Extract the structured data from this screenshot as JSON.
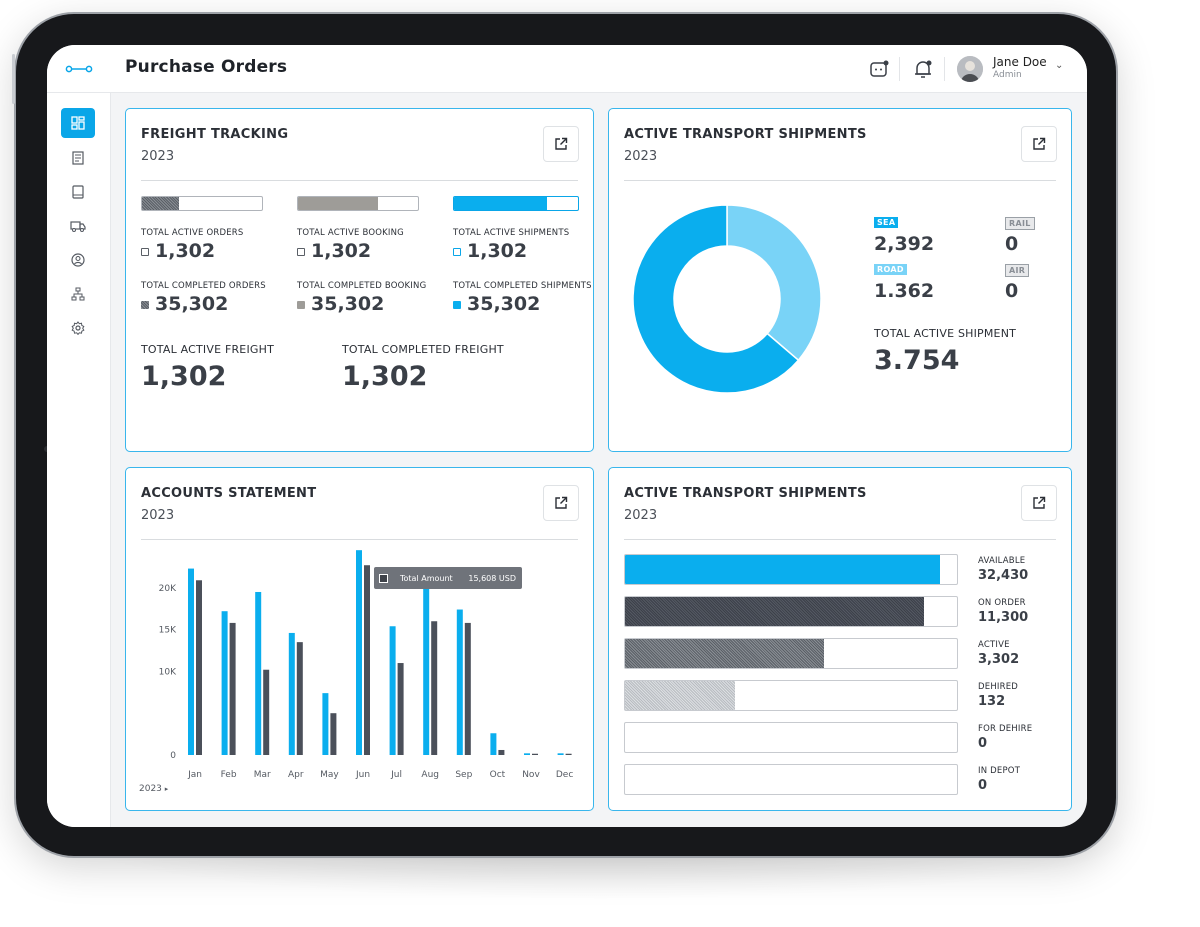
{
  "header": {
    "title": "Purchase Orders"
  },
  "user": {
    "name": "Jane Doe",
    "role": "Admin"
  },
  "colors": {
    "accent": "#0aa6e8",
    "light_blue": "#79d3f7",
    "dark_bar": "#4b505a"
  },
  "sidebar": {
    "items": [
      {
        "icon": "dashboard-icon",
        "active": true
      },
      {
        "icon": "document-list-icon",
        "active": false
      },
      {
        "icon": "book-icon",
        "active": false
      },
      {
        "icon": "truck-icon",
        "active": false
      },
      {
        "icon": "user-circle-icon",
        "active": false
      },
      {
        "icon": "hierarchy-icon",
        "active": false
      },
      {
        "icon": "settings-icon",
        "active": false
      }
    ]
  },
  "freight": {
    "title": "FREIGHT TRACKING",
    "year": "2023",
    "orders": {
      "progress": 0.31,
      "active_label": "TOTAL ACTIVE ORDERS",
      "active_value": "1,302",
      "completed_label": "TOTAL COMPLETED ORDERS",
      "completed_value": "35,302"
    },
    "booking": {
      "progress": 0.67,
      "active_label": "TOTAL ACTIVE BOOKING",
      "active_value": "1,302",
      "completed_label": "TOTAL COMPLETED BOOKING",
      "completed_value": "35,302"
    },
    "shipments": {
      "progress": 0.75,
      "active_label": "TOTAL ACTIVE SHIPMENTS",
      "active_value": "1,302",
      "completed_label": "TOTAL COMPLETED SHIPMENTS",
      "completed_value": "35,302"
    },
    "total_active_label": "TOTAL ACTIVE FREIGHT",
    "total_active_value": "1,302",
    "total_completed_label": "TOTAL COMPLETED FREIGHT",
    "total_completed_value": "1,302"
  },
  "transport": {
    "title": "ACTIVE TRANSPORT SHIPMENTS",
    "year": "2023",
    "modes": [
      {
        "tag": "SEA",
        "value": "2,392"
      },
      {
        "tag": "RAIL",
        "value": "0"
      },
      {
        "tag": "ROAD",
        "value": "1.362"
      },
      {
        "tag": "AIR",
        "value": "0"
      }
    ],
    "total_label": "TOTAL ACTIVE SHIPMENT",
    "total_value": "3.754"
  },
  "accounts": {
    "title": "ACCOUNTS STATEMENT",
    "year": "2023",
    "year_selector": "2023",
    "tooltip": {
      "label": "Total Amount",
      "value": "15,608 USD"
    }
  },
  "inventory": {
    "title": "ACTIVE TRANSPORT SHIPMENTS",
    "year": "2023",
    "rows": [
      {
        "label": "AVAILABLE",
        "value": "32,430",
        "fraction": 0.95
      },
      {
        "label": "ON ORDER",
        "value": "11,300",
        "fraction": 0.9
      },
      {
        "label": "ACTIVE",
        "value": "3,302",
        "fraction": 0.6
      },
      {
        "label": "DEHIRED",
        "value": "132",
        "fraction": 0.33
      },
      {
        "label": "FOR DEHIRE",
        "value": "0",
        "fraction": 0
      },
      {
        "label": "IN DEPOT",
        "value": "0",
        "fraction": 0
      }
    ]
  },
  "chart_data": [
    {
      "type": "pie",
      "categories": [
        "Sea",
        "Road"
      ],
      "values": [
        2392,
        1362
      ],
      "colors": [
        "#0aaeee",
        "#79d3f7"
      ],
      "donut": true
    },
    {
      "type": "bar",
      "categories": [
        "Jan",
        "Feb",
        "Mar",
        "Apr",
        "May",
        "Jun",
        "Jul",
        "Aug",
        "Sep",
        "Oct",
        "Nov",
        "Dec"
      ],
      "series": [
        {
          "values": [
            22300,
            17200,
            19500,
            14600,
            7400,
            24500,
            15400,
            20600,
            17400,
            2600,
            200,
            200
          ],
          "color": "#0aaeee"
        },
        {
          "values": [
            20900,
            15800,
            10200,
            13500,
            5000,
            22700,
            11000,
            16000,
            15800,
            600,
            150,
            150
          ],
          "color": "#4b505a"
        }
      ],
      "yticks": [
        "0",
        "10K",
        "15K",
        "20K"
      ],
      "ytick_values": [
        0,
        10000,
        15000,
        20000
      ],
      "ylim": [
        0,
        25000
      ],
      "grid": false
    }
  ]
}
